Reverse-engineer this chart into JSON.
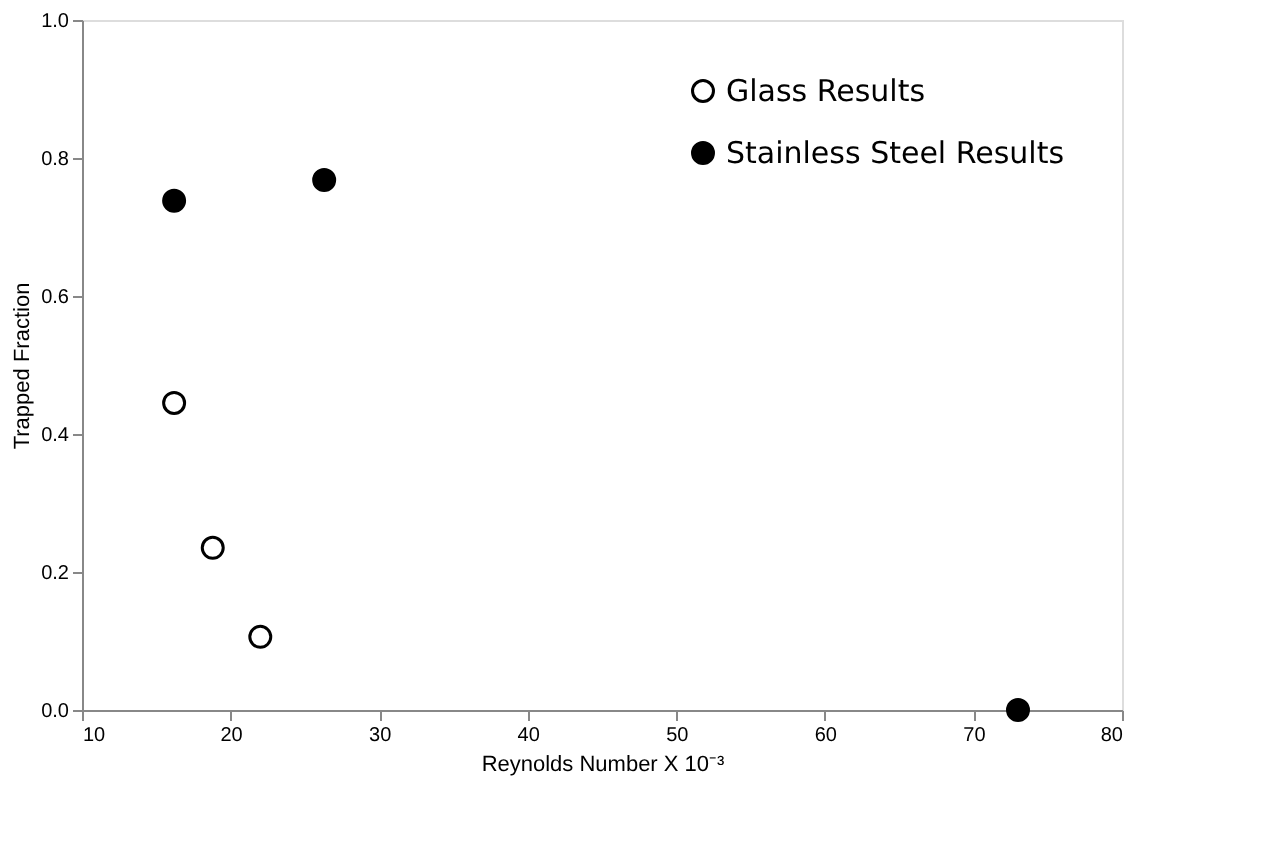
{
  "chart_data": {
    "type": "scatter",
    "xlabel": "Reynolds Number X 10⁻³",
    "ylabel": "Trapped Fraction",
    "xlim": [
      10,
      80
    ],
    "xticks": [
      10,
      20,
      30,
      40,
      50,
      60,
      70,
      80
    ],
    "ylim": [
      0,
      1
    ],
    "yticks": [
      {
        "value": 0,
        "label": "0.0"
      },
      {
        "value": 0.2,
        "label": "0.2"
      },
      {
        "value": 0.4,
        "label": "0.4"
      },
      {
        "value": 0.6,
        "label": "0.6"
      },
      {
        "value": 0.8,
        "label": "0.8"
      },
      {
        "value": 1,
        "label": "1.0"
      }
    ],
    "grid": false,
    "legend": "top right",
    "marker": "circle",
    "series": [
      {
        "name": "Glass Results",
        "color": "#000000",
        "x": [
          16.2,
          18.8,
          22.0
        ],
        "values": [
          0.445,
          0.235,
          0.106
        ]
      },
      {
        "name": "Stainless Steel Results",
        "color": "#000000",
        "x": [
          16.2,
          26.3,
          73.0
        ],
        "values": [
          0.738,
          0.768,
          0.0
        ]
      }
    ]
  }
}
